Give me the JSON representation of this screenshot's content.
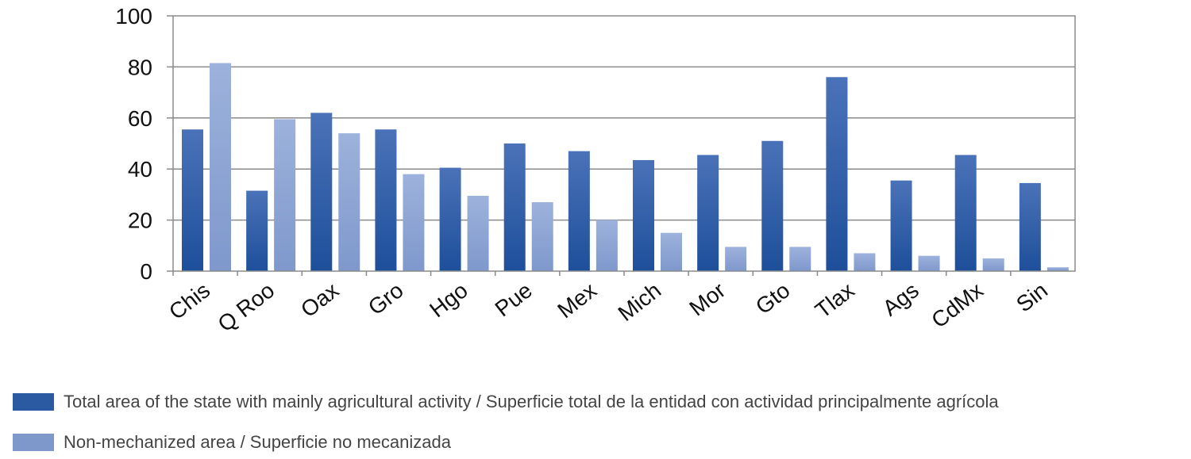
{
  "chart_data": {
    "type": "bar",
    "categories": [
      "Chis",
      "Q Roo",
      "Oax",
      "Gro",
      "Hgo",
      "Pue",
      "Mex",
      "Mich",
      "Mor",
      "Gto",
      "Tlax",
      "Ags",
      "CdMx",
      "Sin"
    ],
    "series": [
      {
        "name": "Total area of the state with mainly agricultural activity / Superficie total de la entidad con actividad principalmente agrícola",
        "color": "#2b5aa3",
        "values": [
          55.5,
          31.5,
          62,
          55.5,
          40.5,
          50,
          47,
          43.5,
          45.5,
          51,
          76,
          35.5,
          45.5,
          34.5
        ]
      },
      {
        "name": "Non-mechanized area / Superficie no mecanizada",
        "color": "#8fa6d6",
        "values": [
          81.5,
          59.5,
          54,
          38,
          29.5,
          27,
          20,
          15,
          9.5,
          9.5,
          7,
          6,
          5,
          1.5
        ]
      }
    ],
    "yticks": [
      0,
      20,
      40,
      60,
      80,
      100
    ],
    "ylim": [
      0,
      100
    ],
    "grid": true,
    "legend_position": "bottom-left"
  }
}
